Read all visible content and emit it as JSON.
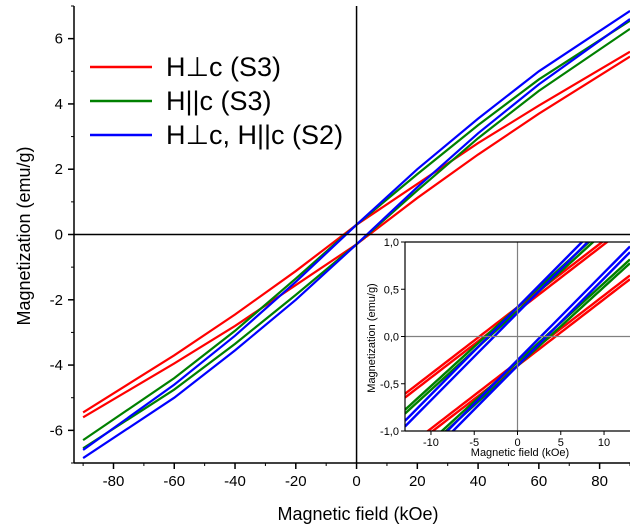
{
  "chart_data": [
    {
      "type": "line",
      "xlabel": "Magnetic field (kOe)",
      "ylabel": "Magnetization (emu/g)",
      "xlim": [
        -93,
        90
      ],
      "ylim": [
        -7.0,
        7.0
      ],
      "xticks": [
        -80,
        -60,
        -40,
        -20,
        0,
        20,
        40,
        60,
        80
      ],
      "yticks": [
        -6,
        -4,
        -2,
        0,
        2,
        4,
        6
      ],
      "grid": false,
      "zero_lines": true,
      "legend_position": "top-left",
      "series": [
        {
          "name": "H⊥c (S3)",
          "color": "#ff0000",
          "x": [
            -90,
            -60,
            -40,
            -20,
            0,
            20,
            40,
            60,
            90
          ],
          "upper": [
            -5.45,
            -3.7,
            -2.45,
            -1.12,
            0.3,
            1.55,
            2.8,
            3.95,
            5.6
          ],
          "lower": [
            -5.6,
            -3.95,
            -2.8,
            -1.55,
            -0.3,
            1.12,
            2.45,
            3.7,
            5.45
          ]
        },
        {
          "name": "H||c (S3)",
          "color": "#008000",
          "x": [
            -90,
            -60,
            -40,
            -20,
            0,
            20,
            40,
            60,
            90
          ],
          "upper": [
            -6.3,
            -4.4,
            -2.95,
            -1.35,
            0.3,
            1.85,
            3.35,
            4.75,
            6.55
          ],
          "lower": [
            -6.55,
            -4.75,
            -3.35,
            -1.85,
            -0.3,
            1.35,
            2.95,
            4.4,
            6.3
          ]
        },
        {
          "name": "H⊥c, H||c (S2)",
          "color": "#0000ff",
          "x": [
            -90,
            -60,
            -40,
            -20,
            0,
            20,
            40,
            60,
            90
          ],
          "upper": [
            -6.6,
            -4.6,
            -3.1,
            -1.45,
            0.3,
            2.0,
            3.55,
            5.0,
            6.85
          ],
          "lower": [
            -6.85,
            -5.0,
            -3.55,
            -2.0,
            -0.3,
            1.45,
            3.1,
            4.6,
            6.6
          ]
        }
      ]
    },
    {
      "type": "line",
      "xlabel": "Magnetic field (kOe)",
      "ylabel": "Magnetization (emu/g)",
      "xlim": [
        -13,
        13
      ],
      "ylim": [
        -1.0,
        1.0
      ],
      "xticks": [
        -10,
        -5,
        0,
        5,
        10
      ],
      "xtick_labels": [
        "-10",
        "-5",
        "0",
        "5",
        "10"
      ],
      "yticks": [
        -1.0,
        -0.5,
        0.0,
        0.5,
        1.0
      ],
      "ytick_labels": [
        "-1,0",
        "-0,5",
        "0,0",
        "0,5",
        "1,0"
      ],
      "grid": false,
      "zero_lines": true,
      "series": [
        {
          "name": "H⊥c (S3)",
          "color": "#ff0000",
          "offsets": [
            [
              0.27,
              0.31
            ],
            [
              -0.27,
              -0.31
            ]
          ],
          "slope": 0.0705
        },
        {
          "name": "H||c (S3)",
          "color": "#008000",
          "offsets": [
            [
              0.27,
              0.31
            ],
            [
              -0.27,
              -0.31
            ]
          ],
          "slope": 0.0835
        },
        {
          "name": "H⊥c, H||c (S2)",
          "color": "#0000ff",
          "offsets": [
            [
              0.25,
              0.31
            ],
            [
              -0.25,
              -0.31
            ]
          ],
          "slope": 0.0925
        }
      ]
    }
  ]
}
